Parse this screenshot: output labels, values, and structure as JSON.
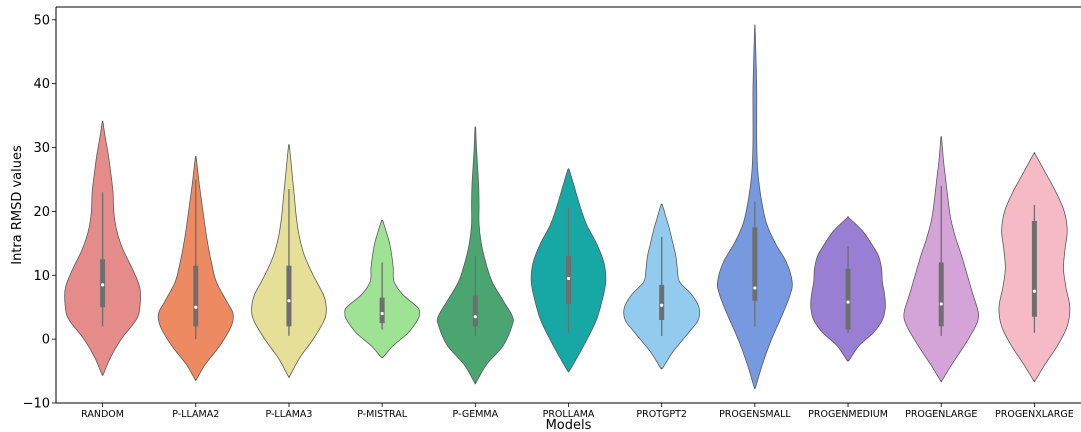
{
  "chart_data": {
    "type": "violin",
    "title": "",
    "xlabel": "Models",
    "ylabel": "Intra RMSD values",
    "ylim": [
      -10,
      52
    ],
    "yticks": [
      -10,
      0,
      10,
      20,
      30,
      40,
      50
    ],
    "grid": false,
    "series": [
      {
        "category": "RANDOM",
        "color": "#e58c8a",
        "min": -5.5,
        "max": 34,
        "whisker_low": 2,
        "q1": 5,
        "median": 8.5,
        "q3": 12.5,
        "whisker_high": 23,
        "profile": [
          [
            -5.5,
            0.02
          ],
          [
            -3,
            0.2
          ],
          [
            0,
            0.5
          ],
          [
            3,
            0.9
          ],
          [
            5,
            1.0
          ],
          [
            8,
            1.0
          ],
          [
            11,
            0.8
          ],
          [
            14,
            0.55
          ],
          [
            17,
            0.38
          ],
          [
            20,
            0.3
          ],
          [
            23,
            0.28
          ],
          [
            26,
            0.22
          ],
          [
            29,
            0.15
          ],
          [
            32,
            0.06
          ],
          [
            34,
            0.01
          ]
        ]
      },
      {
        "category": "P-LLAMA2",
        "color": "#ee8a62",
        "min": -6.3,
        "max": 28.5,
        "whisker_low": 0,
        "q1": 2,
        "median": 5,
        "q3": 11.5,
        "whisker_high": 25,
        "profile": [
          [
            -6.3,
            0.02
          ],
          [
            -4,
            0.25
          ],
          [
            -1,
            0.65
          ],
          [
            2,
            0.95
          ],
          [
            4,
            1.0
          ],
          [
            6,
            0.82
          ],
          [
            9,
            0.55
          ],
          [
            12,
            0.42
          ],
          [
            15,
            0.32
          ],
          [
            18,
            0.24
          ],
          [
            21,
            0.17
          ],
          [
            24,
            0.1
          ],
          [
            27,
            0.04
          ],
          [
            28.5,
            0.01
          ]
        ]
      },
      {
        "category": "P-LLAMA3",
        "color": "#e6df97",
        "min": -5.8,
        "max": 30.3,
        "whisker_low": 0.5,
        "q1": 2,
        "median": 6,
        "q3": 11.5,
        "whisker_high": 23.5,
        "profile": [
          [
            -5.8,
            0.02
          ],
          [
            -3,
            0.28
          ],
          [
            0,
            0.65
          ],
          [
            3,
            0.95
          ],
          [
            5,
            1.0
          ],
          [
            7,
            0.92
          ],
          [
            10,
            0.65
          ],
          [
            13,
            0.42
          ],
          [
            16,
            0.28
          ],
          [
            19,
            0.2
          ],
          [
            22,
            0.15
          ],
          [
            25,
            0.1
          ],
          [
            28,
            0.05
          ],
          [
            30.3,
            0.01
          ]
        ]
      },
      {
        "category": "P-MISTRAL",
        "color": "#9ee394",
        "min": -2.8,
        "max": 18.5,
        "whisker_low": 1.5,
        "q1": 2.5,
        "median": 4,
        "q3": 6.5,
        "whisker_high": 12,
        "profile": [
          [
            -2.8,
            0.03
          ],
          [
            -1,
            0.3
          ],
          [
            1,
            0.7
          ],
          [
            3,
            0.95
          ],
          [
            4,
            1.0
          ],
          [
            5,
            0.95
          ],
          [
            7,
            0.55
          ],
          [
            9,
            0.32
          ],
          [
            11,
            0.3
          ],
          [
            13,
            0.26
          ],
          [
            15,
            0.2
          ],
          [
            17,
            0.1
          ],
          [
            18.5,
            0.02
          ]
        ]
      },
      {
        "category": "P-GEMMA",
        "color": "#4aa570",
        "min": -6.8,
        "max": 33,
        "whisker_low": 0.5,
        "q1": 2,
        "median": 3.5,
        "q3": 6.8,
        "whisker_high": 13,
        "profile": [
          [
            -6.8,
            0.02
          ],
          [
            -4,
            0.3
          ],
          [
            -1,
            0.75
          ],
          [
            2,
            0.98
          ],
          [
            3.5,
            1.0
          ],
          [
            6,
            0.75
          ],
          [
            9,
            0.45
          ],
          [
            12,
            0.28
          ],
          [
            15,
            0.16
          ],
          [
            18,
            0.1
          ],
          [
            21,
            0.1
          ],
          [
            24,
            0.09
          ],
          [
            27,
            0.06
          ],
          [
            30,
            0.03
          ],
          [
            33,
            0.01
          ]
        ]
      },
      {
        "category": "PROLLAMA",
        "color": "#17a8a6",
        "min": -5,
        "max": 26.5,
        "whisker_low": 1,
        "q1": 5.5,
        "median": 9.5,
        "q3": 13,
        "whisker_high": 20.5,
        "profile": [
          [
            -5,
            0.02
          ],
          [
            -3,
            0.22
          ],
          [
            0,
            0.5
          ],
          [
            3,
            0.75
          ],
          [
            6,
            0.9
          ],
          [
            9,
            1.0
          ],
          [
            12,
            0.95
          ],
          [
            15,
            0.75
          ],
          [
            18,
            0.48
          ],
          [
            21,
            0.3
          ],
          [
            24,
            0.15
          ],
          [
            26.5,
            0.02
          ]
        ]
      },
      {
        "category": "PROTGPT2",
        "color": "#92cbee",
        "min": -4.5,
        "max": 21,
        "whisker_low": 0.5,
        "q1": 3,
        "median": 5.3,
        "q3": 8.5,
        "whisker_high": 16,
        "profile": [
          [
            -4.5,
            0.03
          ],
          [
            -2,
            0.3
          ],
          [
            1,
            0.72
          ],
          [
            3,
            0.98
          ],
          [
            5,
            1.0
          ],
          [
            7,
            0.8
          ],
          [
            9,
            0.48
          ],
          [
            11,
            0.42
          ],
          [
            13,
            0.38
          ],
          [
            15,
            0.3
          ],
          [
            17,
            0.22
          ],
          [
            19,
            0.12
          ],
          [
            21,
            0.02
          ]
        ]
      },
      {
        "category": "PROGENSMALL",
        "color": "#7799e0",
        "min": -7.5,
        "max": 49,
        "whisker_low": 2,
        "q1": 6,
        "median": 8,
        "q3": 17.5,
        "whisker_high": 21.5,
        "profile": [
          [
            -7.5,
            0.02
          ],
          [
            -4,
            0.2
          ],
          [
            0,
            0.45
          ],
          [
            4,
            0.75
          ],
          [
            7,
            0.95
          ],
          [
            9,
            1.0
          ],
          [
            12,
            0.85
          ],
          [
            15,
            0.55
          ],
          [
            18,
            0.32
          ],
          [
            21,
            0.2
          ],
          [
            24,
            0.12
          ],
          [
            27,
            0.07
          ],
          [
            31,
            0.05
          ],
          [
            35,
            0.05
          ],
          [
            39,
            0.05
          ],
          [
            43,
            0.035
          ],
          [
            46,
            0.02
          ],
          [
            49,
            0.005
          ]
        ]
      },
      {
        "category": "PROGENMEDIUM",
        "color": "#997fd3",
        "min": -3.3,
        "max": 19,
        "whisker_low": 1,
        "q1": 1.5,
        "median": 5.8,
        "q3": 11,
        "whisker_high": 14.5,
        "profile": [
          [
            -3.3,
            0.03
          ],
          [
            -1,
            0.3
          ],
          [
            1,
            0.68
          ],
          [
            3,
            0.92
          ],
          [
            5,
            1.0
          ],
          [
            7,
            0.98
          ],
          [
            9,
            0.92
          ],
          [
            11,
            0.9
          ],
          [
            13,
            0.82
          ],
          [
            15,
            0.62
          ],
          [
            17,
            0.38
          ],
          [
            19,
            0.02
          ]
        ]
      },
      {
        "category": "PROGENLARGE",
        "color": "#d4a4d8",
        "min": -6.5,
        "max": 31.5,
        "whisker_low": 0.5,
        "q1": 2,
        "median": 5.5,
        "q3": 12,
        "whisker_high": 24,
        "profile": [
          [
            -6.5,
            0.02
          ],
          [
            -4,
            0.28
          ],
          [
            -1,
            0.62
          ],
          [
            2,
            0.92
          ],
          [
            4,
            1.0
          ],
          [
            7,
            0.85
          ],
          [
            10,
            0.7
          ],
          [
            13,
            0.55
          ],
          [
            16,
            0.38
          ],
          [
            19,
            0.25
          ],
          [
            22,
            0.18
          ],
          [
            25,
            0.12
          ],
          [
            28,
            0.06
          ],
          [
            31.5,
            0.01
          ]
        ]
      },
      {
        "category": "PROGENXLARGE",
        "color": "#f5bac5",
        "min": -6.5,
        "max": 29,
        "whisker_low": 1,
        "q1": 3.5,
        "median": 7.5,
        "q3": 18.5,
        "whisker_high": 21,
        "profile": [
          [
            -6.5,
            0.02
          ],
          [
            -4,
            0.28
          ],
          [
            -1,
            0.62
          ],
          [
            2,
            0.88
          ],
          [
            5,
            0.95
          ],
          [
            8,
            0.85
          ],
          [
            11,
            0.78
          ],
          [
            14,
            0.82
          ],
          [
            17,
            0.88
          ],
          [
            20,
            0.8
          ],
          [
            23,
            0.58
          ],
          [
            26,
            0.3
          ],
          [
            29,
            0.02
          ]
        ]
      }
    ]
  }
}
